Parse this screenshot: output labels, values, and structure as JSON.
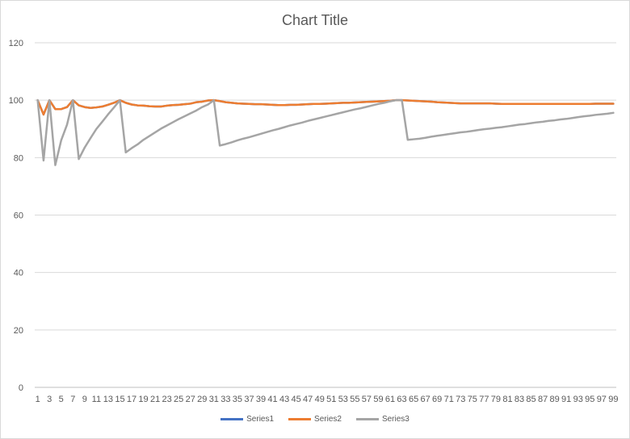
{
  "chart_data": {
    "type": "line",
    "title": "Chart Title",
    "xlabel": "",
    "ylabel": "",
    "ylim": [
      0,
      120
    ],
    "yticks": [
      0,
      20,
      40,
      60,
      80,
      100,
      120
    ],
    "grid": true,
    "legend_position": "bottom",
    "x_tick_labels": [
      "1",
      "3",
      "5",
      "7",
      "9",
      "11",
      "13",
      "15",
      "17",
      "19",
      "21",
      "23",
      "25",
      "27",
      "29",
      "31",
      "33",
      "35",
      "37",
      "39",
      "41",
      "43",
      "45",
      "47",
      "49",
      "51",
      "53",
      "55",
      "57",
      "59",
      "61",
      "63",
      "65",
      "67",
      "69",
      "71",
      "73",
      "75",
      "77",
      "79",
      "81",
      "83",
      "85",
      "87",
      "89",
      "91",
      "93",
      "95",
      "97",
      "99"
    ],
    "x": [
      1,
      2,
      3,
      4,
      5,
      6,
      7,
      8,
      9,
      10,
      11,
      12,
      13,
      14,
      15,
      16,
      17,
      18,
      19,
      20,
      21,
      22,
      23,
      24,
      25,
      26,
      27,
      28,
      29,
      30,
      31,
      32,
      33,
      34,
      35,
      36,
      37,
      38,
      39,
      40,
      41,
      42,
      43,
      44,
      45,
      46,
      47,
      48,
      49,
      50,
      51,
      52,
      53,
      54,
      55,
      56,
      57,
      58,
      59,
      60,
      61,
      62,
      63,
      64,
      65,
      66,
      67,
      68,
      69,
      70,
      71,
      72,
      73,
      74,
      75,
      76,
      77,
      78,
      79,
      80,
      81,
      82,
      83,
      84,
      85,
      86,
      87,
      88,
      89,
      90,
      91,
      92,
      93,
      94,
      95,
      96,
      97,
      98,
      99
    ],
    "series": [
      {
        "name": "Series1",
        "color": "#4472c4",
        "values": [
          100,
          95,
          100,
          96.9,
          96.9,
          97.6,
          100,
          98.2,
          97.6,
          97.3,
          97.5,
          97.8,
          98.4,
          99.1,
          100,
          99.1,
          98.5,
          98.2,
          98.1,
          97.9,
          97.8,
          97.8,
          98.1,
          98.3,
          98.4,
          98.6,
          98.8,
          99.3,
          99.5,
          99.9,
          100,
          99.7,
          99.3,
          99.1,
          98.9,
          98.8,
          98.7,
          98.6,
          98.6,
          98.5,
          98.4,
          98.3,
          98.3,
          98.4,
          98.4,
          98.5,
          98.6,
          98.7,
          98.7,
          98.8,
          98.9,
          99,
          99.1,
          99.1,
          99.2,
          99.3,
          99.4,
          99.5,
          99.6,
          99.7,
          99.8,
          100,
          100,
          99.9,
          99.8,
          99.7,
          99.6,
          99.5,
          99.3,
          99.2,
          99.1,
          99,
          98.9,
          98.9,
          98.9,
          98.9,
          98.9,
          98.9,
          98.8,
          98.7,
          98.7,
          98.7,
          98.7,
          98.7,
          98.7,
          98.7,
          98.7,
          98.7,
          98.7,
          98.7,
          98.7,
          98.7,
          98.7,
          98.7,
          98.7,
          98.8,
          98.8,
          98.8,
          98.8
        ]
      },
      {
        "name": "Series2",
        "color": "#ed7d31",
        "values": [
          100,
          95,
          100,
          96.9,
          96.9,
          97.6,
          100,
          98.2,
          97.6,
          97.3,
          97.5,
          97.8,
          98.4,
          99.1,
          100,
          99.1,
          98.5,
          98.2,
          98.1,
          97.9,
          97.8,
          97.8,
          98.1,
          98.3,
          98.4,
          98.6,
          98.8,
          99.3,
          99.5,
          99.9,
          100,
          99.7,
          99.3,
          99.1,
          98.9,
          98.8,
          98.7,
          98.6,
          98.6,
          98.5,
          98.4,
          98.3,
          98.3,
          98.4,
          98.4,
          98.5,
          98.6,
          98.7,
          98.7,
          98.8,
          98.9,
          99,
          99.1,
          99.1,
          99.2,
          99.3,
          99.4,
          99.5,
          99.6,
          99.7,
          99.8,
          100,
          100,
          99.9,
          99.8,
          99.7,
          99.6,
          99.5,
          99.3,
          99.2,
          99.1,
          99,
          98.9,
          98.9,
          98.9,
          98.9,
          98.9,
          98.9,
          98.8,
          98.7,
          98.7,
          98.7,
          98.7,
          98.7,
          98.7,
          98.7,
          98.7,
          98.7,
          98.7,
          98.7,
          98.7,
          98.7,
          98.7,
          98.7,
          98.7,
          98.8,
          98.8,
          98.8,
          98.8
        ]
      },
      {
        "name": "Series3",
        "color": "#a5a5a5",
        "values": [
          100,
          79,
          100,
          77.4,
          86,
          91.5,
          100,
          79.5,
          83.5,
          86.8,
          90,
          92.5,
          95.1,
          97.5,
          100,
          81.8,
          83.3,
          84.6,
          86.2,
          87.5,
          88.8,
          90.1,
          91.2,
          92.3,
          93.4,
          94.4,
          95.4,
          96.4,
          97.6,
          98.5,
          100,
          84.2,
          84.7,
          85.3,
          86,
          86.6,
          87.1,
          87.7,
          88.3,
          88.9,
          89.5,
          90,
          90.6,
          91.2,
          91.7,
          92.2,
          92.8,
          93.3,
          93.8,
          94.3,
          94.8,
          95.3,
          95.8,
          96.3,
          96.8,
          97.2,
          97.7,
          98.2,
          98.7,
          99.1,
          99.6,
          100,
          100,
          86.2,
          86.4,
          86.6,
          86.9,
          87.3,
          87.6,
          87.9,
          88.2,
          88.5,
          88.8,
          89,
          89.3,
          89.6,
          89.9,
          90.1,
          90.4,
          90.6,
          90.9,
          91.2,
          91.5,
          91.7,
          92,
          92.3,
          92.5,
          92.8,
          93,
          93.3,
          93.5,
          93.8,
          94.1,
          94.4,
          94.6,
          94.9,
          95.1,
          95.3,
          95.6
        ]
      }
    ]
  }
}
